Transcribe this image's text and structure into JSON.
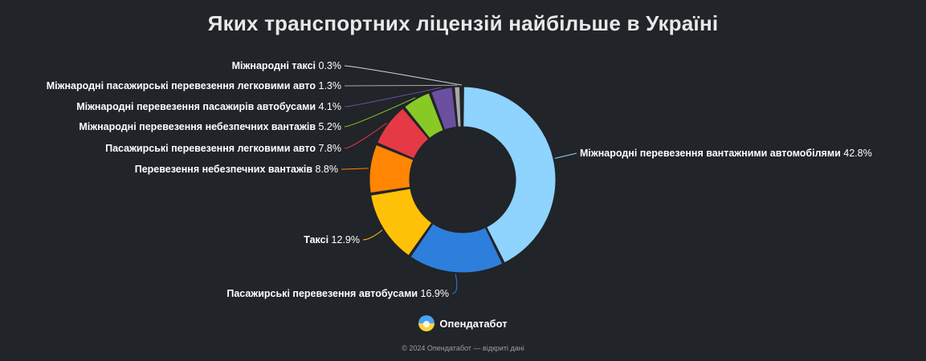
{
  "title": "Яких транспортних ліцензій найбільше в Україні",
  "brand": {
    "name": "Опендатабот"
  },
  "footer": "© 2024 Опендатабот — відкриті дані",
  "colors": {
    "background": "#212429",
    "title": "#e8e8e8",
    "label": "#ffffff"
  },
  "chart_data": {
    "type": "pie",
    "title": "Яких транспортних ліцензій найбільше в Україні",
    "unit": "%",
    "slices": [
      {
        "label": "Міжнародні перевезення вантажними автомобілями",
        "value": 42.8,
        "color": "#8fd3ff"
      },
      {
        "label": "Пасажирські перевезення автобусами",
        "value": 16.9,
        "color": "#2e7fdc"
      },
      {
        "label": "Таксі",
        "value": 12.9,
        "color": "#ffc108"
      },
      {
        "label": "Перевезення небезпечних вантажів",
        "value": 8.8,
        "color": "#ff8503"
      },
      {
        "label": "Пасажирські перевезення легковими авто",
        "value": 7.8,
        "color": "#e63946"
      },
      {
        "label": "Міжнародні перевезення небезпечних вантажів",
        "value": 5.2,
        "color": "#88c926"
      },
      {
        "label": "Міжнародні перевезення пасажирів автобусами",
        "value": 4.1,
        "color": "#6b4fa0"
      },
      {
        "label": "Міжнародні пасажирські перевезення легковими авто",
        "value": 1.3,
        "color": "#a8a8a8"
      },
      {
        "label": "Міжнародні таксі",
        "value": 0.3,
        "color": "#d8d8d8"
      }
    ]
  }
}
